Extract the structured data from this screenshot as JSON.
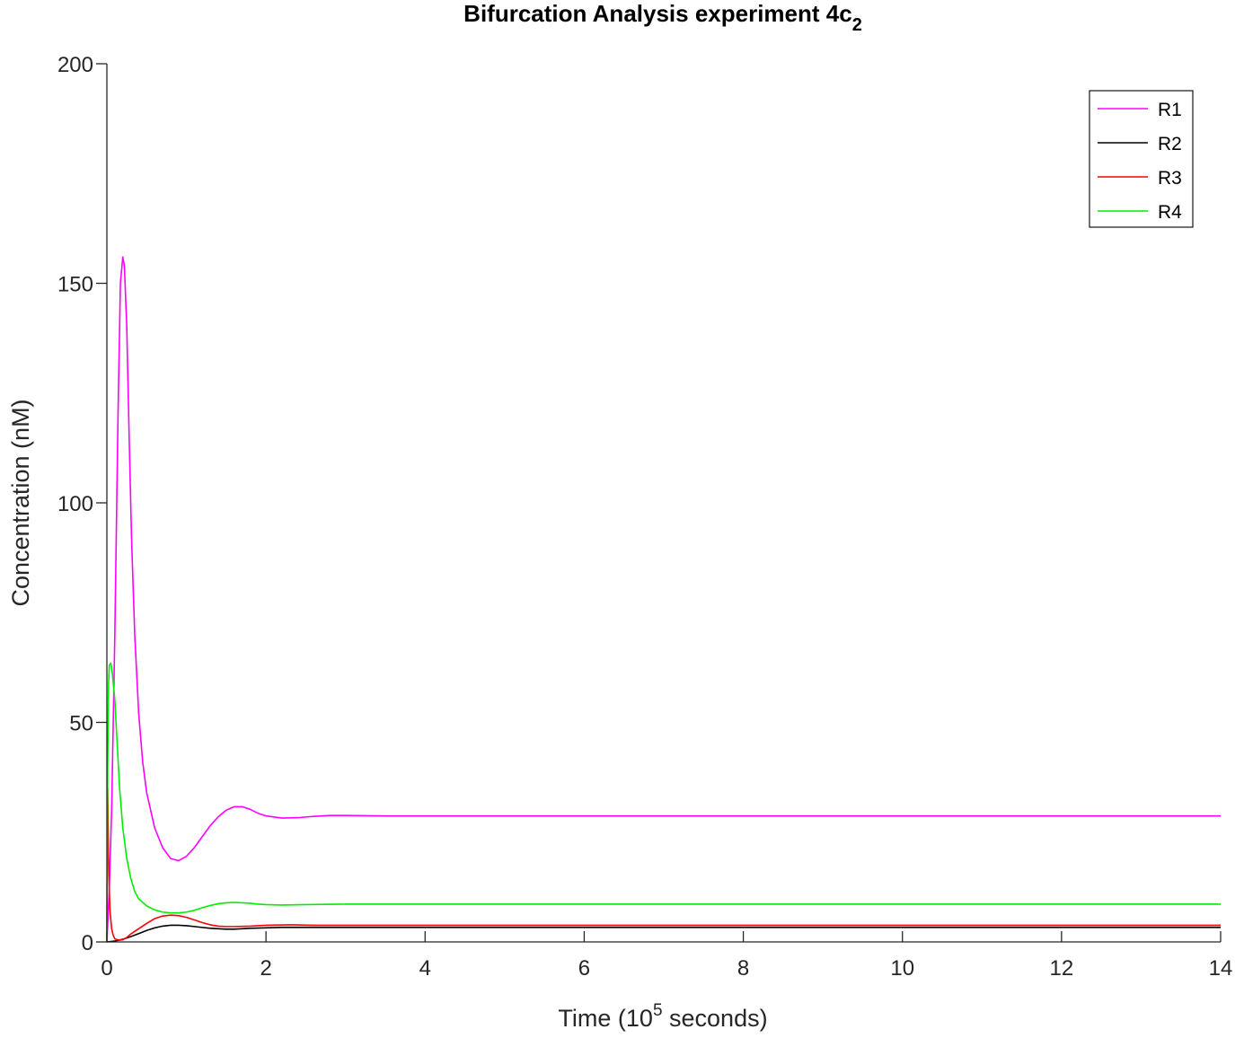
{
  "chart_data": {
    "type": "line",
    "title": "Bifurcation Analysis experiment 4c",
    "title_subscript": "2",
    "xlabel": {
      "prefix": "Time (10",
      "superscript": "5",
      "suffix": " seconds)"
    },
    "ylabel": "Concentration (nM)",
    "xlim": [
      0,
      14
    ],
    "ylim": [
      0,
      200
    ],
    "xticks": [
      0,
      2,
      4,
      6,
      8,
      10,
      12,
      14
    ],
    "yticks": [
      0,
      50,
      100,
      150,
      200
    ],
    "grid": false,
    "legend_position": "top-right",
    "series": [
      {
        "name": "R1",
        "color": "#ff00ff",
        "x": [
          0,
          0.03,
          0.06,
          0.1,
          0.14,
          0.17,
          0.2,
          0.22,
          0.25,
          0.28,
          0.31,
          0.35,
          0.4,
          0.45,
          0.5,
          0.6,
          0.7,
          0.8,
          0.9,
          1.0,
          1.1,
          1.2,
          1.3,
          1.4,
          1.5,
          1.6,
          1.7,
          1.8,
          1.9,
          2.0,
          2.2,
          2.4,
          2.6,
          2.8,
          3.0,
          3.5,
          4.0,
          6.0,
          8.0,
          10.0,
          12.0,
          14.0
        ],
        "y": [
          0,
          12,
          30,
          70,
          120,
          150,
          156,
          154,
          140,
          115,
          92,
          70,
          52,
          41,
          34,
          26,
          21.5,
          19,
          18.5,
          19.5,
          21.5,
          24,
          26.5,
          28.5,
          30,
          30.8,
          30.8,
          30.2,
          29.3,
          28.7,
          28.2,
          28.3,
          28.6,
          28.8,
          28.8,
          28.7,
          28.7,
          28.7,
          28.7,
          28.7,
          28.7,
          28.7
        ]
      },
      {
        "name": "R2",
        "color": "#000000",
        "x": [
          0,
          0.1,
          0.2,
          0.3,
          0.4,
          0.5,
          0.6,
          0.7,
          0.8,
          0.9,
          1.0,
          1.1,
          1.2,
          1.3,
          1.4,
          1.5,
          1.6,
          1.7,
          1.8,
          2.0,
          2.2,
          2.5,
          3.0,
          4.0,
          6.0,
          8.0,
          10.0,
          12.0,
          14.0
        ],
        "y": [
          0,
          0.2,
          0.6,
          1.2,
          1.9,
          2.6,
          3.2,
          3.6,
          3.8,
          3.8,
          3.7,
          3.5,
          3.3,
          3.1,
          3.0,
          2.9,
          2.9,
          3.0,
          3.1,
          3.2,
          3.3,
          3.3,
          3.3,
          3.3,
          3.3,
          3.3,
          3.3,
          3.3,
          3.3
        ]
      },
      {
        "name": "R3",
        "color": "#ff0000",
        "x": [
          0,
          0.005,
          0.01,
          0.015,
          0.02,
          0.03,
          0.04,
          0.06,
          0.08,
          0.1,
          0.15,
          0.2,
          0.25,
          0.3,
          0.4,
          0.5,
          0.6,
          0.7,
          0.8,
          0.9,
          1.0,
          1.1,
          1.2,
          1.3,
          1.4,
          1.5,
          1.6,
          1.8,
          2.0,
          2.3,
          2.6,
          3.0,
          4.0,
          6.0,
          8.0,
          10.0,
          12.0,
          14.0
        ],
        "y": [
          0,
          25,
          35,
          28,
          20,
          12,
          7,
          3,
          1.5,
          0.7,
          0.4,
          0.5,
          1.0,
          1.8,
          3.0,
          4.2,
          5.3,
          5.9,
          6.1,
          6.0,
          5.6,
          5.0,
          4.4,
          3.9,
          3.6,
          3.5,
          3.5,
          3.6,
          3.8,
          3.9,
          3.8,
          3.8,
          3.8,
          3.8,
          3.8,
          3.8,
          3.8,
          3.8
        ]
      },
      {
        "name": "R4",
        "color": "#00ee00",
        "x": [
          0,
          0.01,
          0.02,
          0.03,
          0.05,
          0.07,
          0.1,
          0.13,
          0.16,
          0.2,
          0.25,
          0.3,
          0.35,
          0.4,
          0.5,
          0.6,
          0.7,
          0.8,
          0.9,
          1.0,
          1.1,
          1.2,
          1.3,
          1.4,
          1.5,
          1.6,
          1.7,
          1.8,
          1.9,
          2.0,
          2.2,
          2.5,
          3.0,
          4.0,
          6.0,
          8.0,
          10.0,
          12.0,
          14.0
        ],
        "y": [
          0,
          40,
          58,
          63,
          63.5,
          61,
          55,
          45,
          35,
          26,
          19,
          14.5,
          11.5,
          9.8,
          8.2,
          7.3,
          6.8,
          6.6,
          6.6,
          6.8,
          7.2,
          7.8,
          8.3,
          8.7,
          8.9,
          9.0,
          8.9,
          8.8,
          8.6,
          8.5,
          8.4,
          8.5,
          8.6,
          8.6,
          8.6,
          8.6,
          8.6,
          8.6,
          8.6
        ]
      }
    ]
  }
}
